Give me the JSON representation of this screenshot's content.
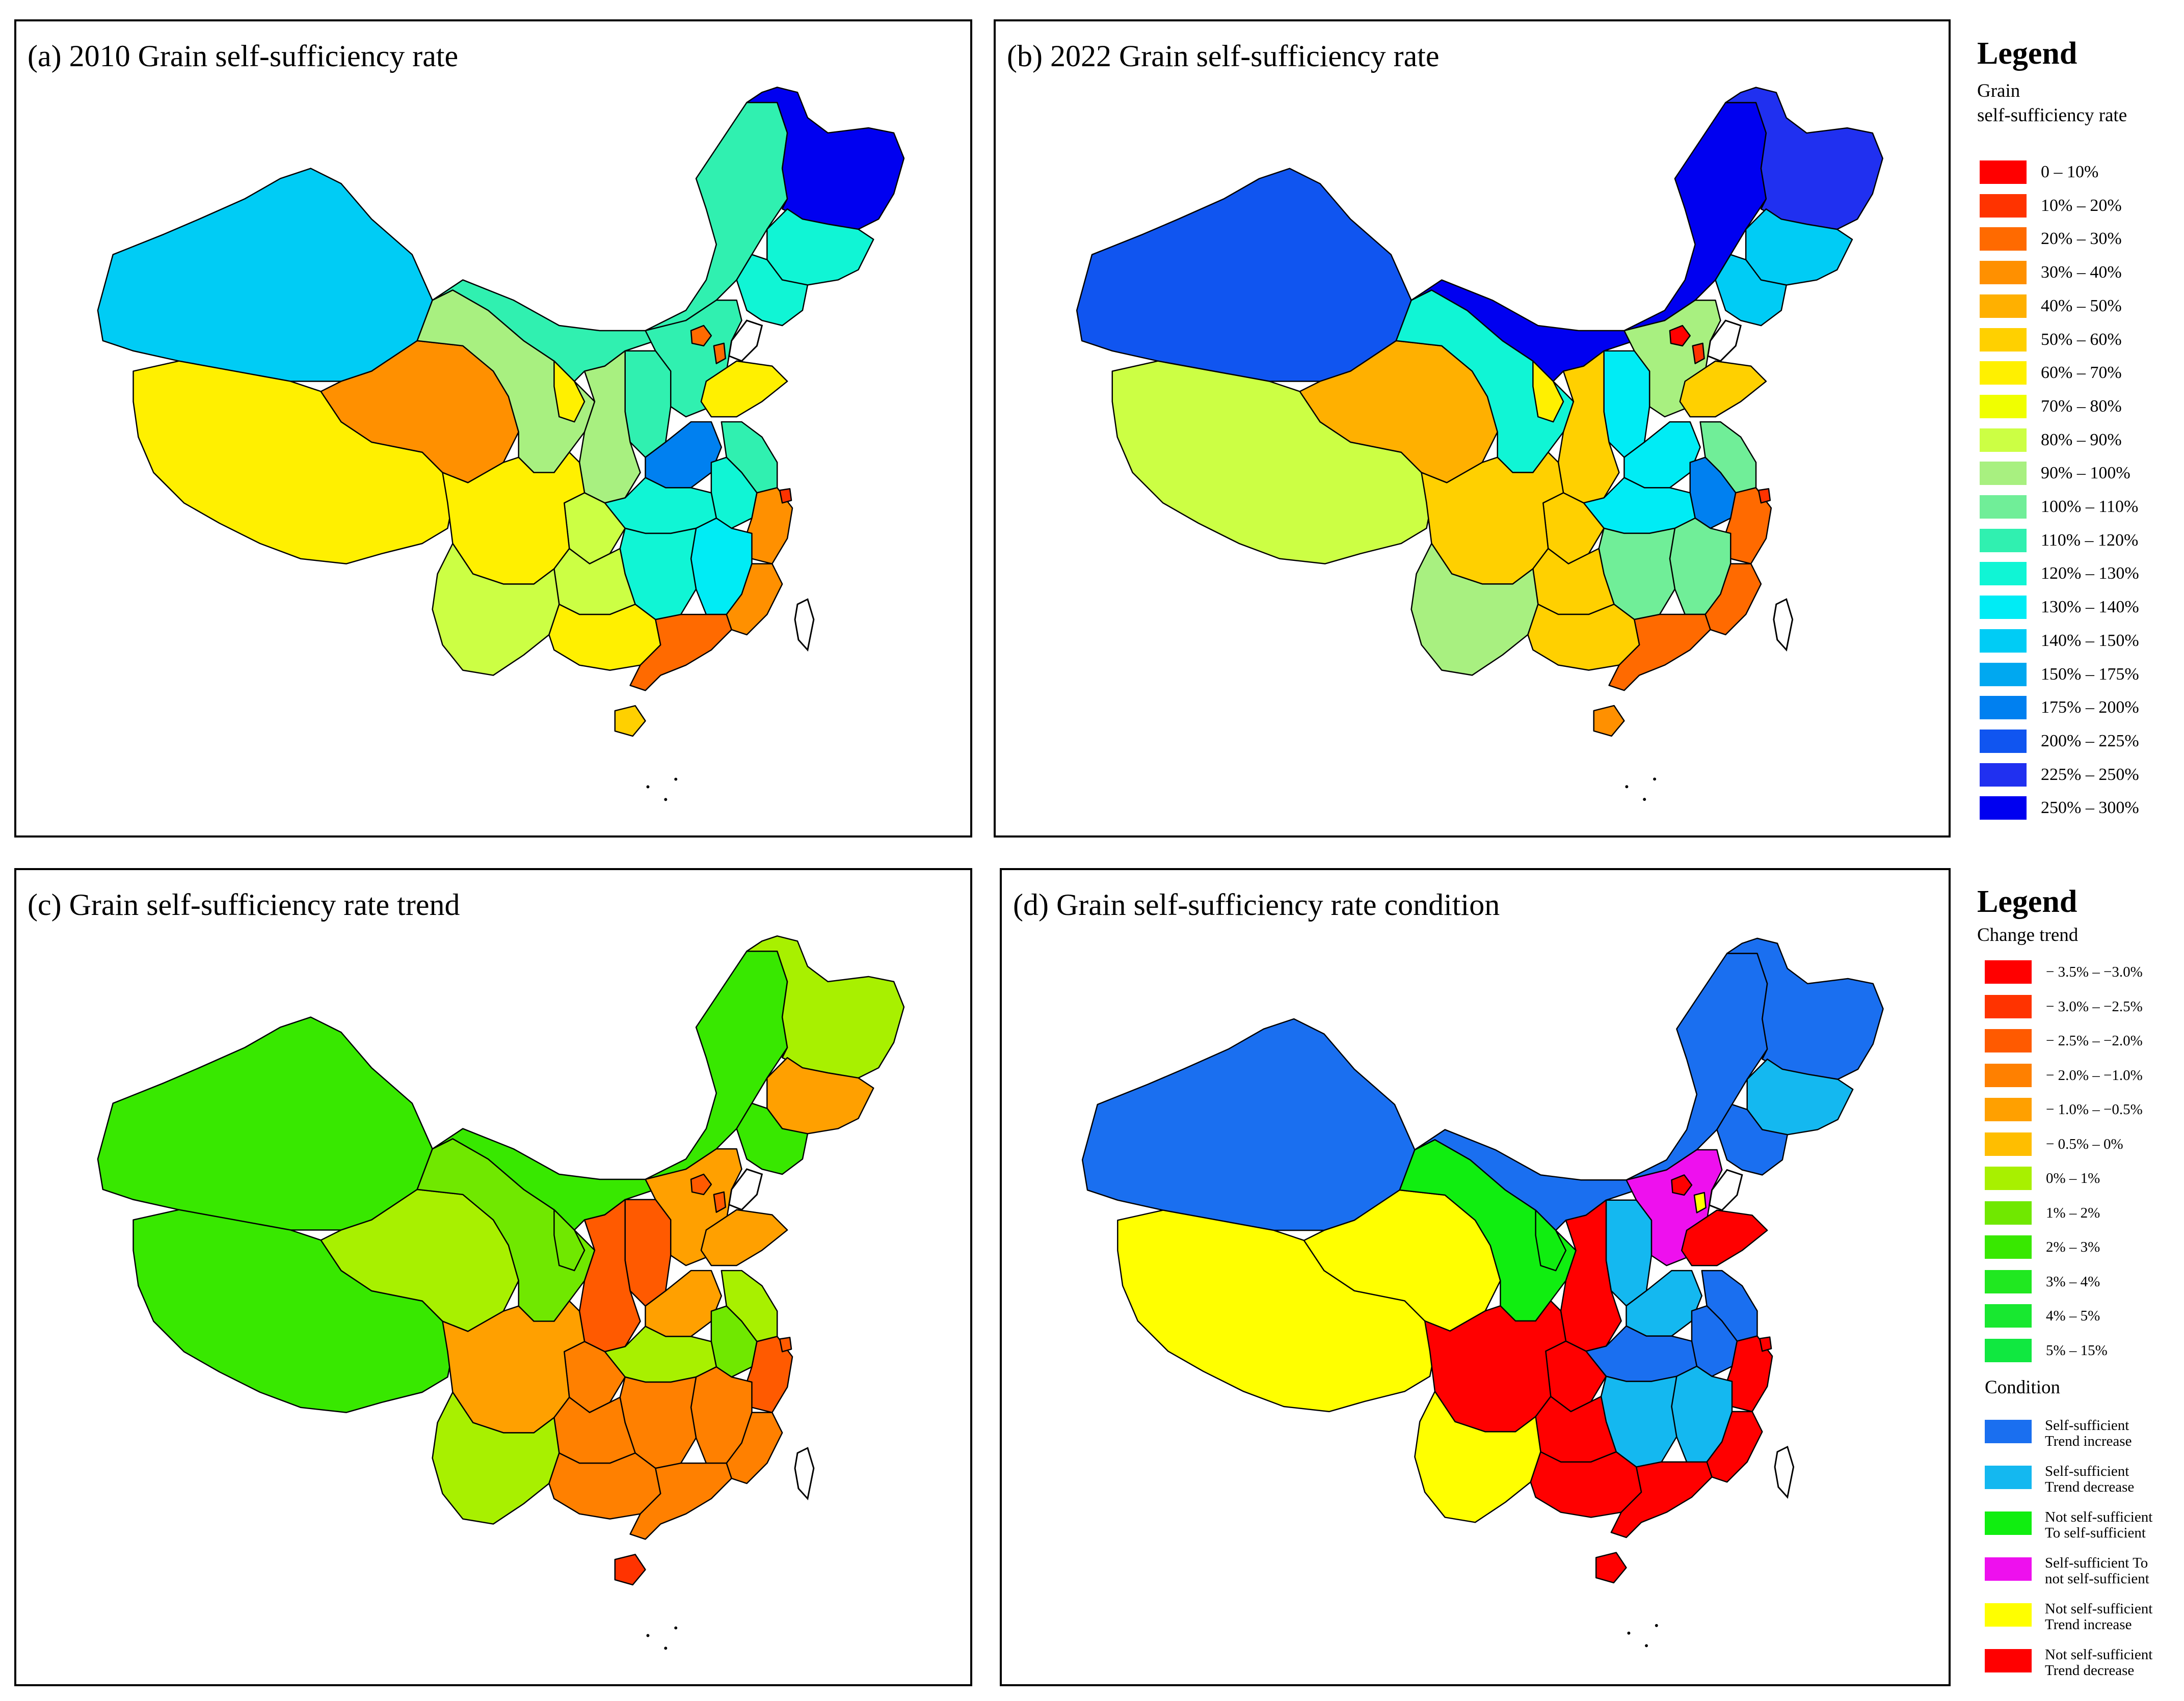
{
  "panels": {
    "a": {
      "title": "(a) 2010 Grain self-sufficiency rate"
    },
    "b": {
      "title": "(b)  2022 Grain self-sufficiency rate"
    },
    "c": {
      "title": "(c) Grain self-sufficiency rate  trend"
    },
    "d": {
      "title": "(d) Grain self-sufficiency rate condition"
    }
  },
  "legend_top": {
    "title": "Legend",
    "subtitle_line1": "Grain",
    "subtitle_line2": "self-sufficiency  rate",
    "items": [
      {
        "label": "0 – 10%",
        "color": "#ff0000"
      },
      {
        "label": "10% – 20%",
        "color": "#ff3300"
      },
      {
        "label": "20% – 30%",
        "color": "#ff6a00"
      },
      {
        "label": "30% – 40%",
        "color": "#ff9000"
      },
      {
        "label": "40% – 50%",
        "color": "#ffb000"
      },
      {
        "label": "50% – 60%",
        "color": "#ffd000"
      },
      {
        "label": "60% – 70%",
        "color": "#fff000"
      },
      {
        "label": "70% – 80%",
        "color": "#f0ff00"
      },
      {
        "label": "80% – 90%",
        "color": "#ccff44"
      },
      {
        "label": "90% – 100%",
        "color": "#a8f080"
      },
      {
        "label": "100% – 110%",
        "color": "#70ee98"
      },
      {
        "label": "110% – 120%",
        "color": "#30f0b0"
      },
      {
        "label": "120% – 130%",
        "color": "#10f5d5"
      },
      {
        "label": "130% – 140%",
        "color": "#00ecf5"
      },
      {
        "label": "140% – 150%",
        "color": "#00ccf5"
      },
      {
        "label": "150% – 175%",
        "color": "#00a8f0"
      },
      {
        "label": "175% – 200%",
        "color": "#0080f0"
      },
      {
        "label": "200% – 225%",
        "color": "#1055f0"
      },
      {
        "label": "225% – 250%",
        "color": "#2030f0"
      },
      {
        "label": "250% – 300%",
        "color": "#0000f0"
      }
    ]
  },
  "legend_bottom": {
    "title": "Legend",
    "trend_heading": "Change trend",
    "trend_items": [
      {
        "label": "− 3.5% – −3.0%",
        "color": "#ff0000"
      },
      {
        "label": "− 3.0% – −2.5%",
        "color": "#ff3300"
      },
      {
        "label": "− 2.5% – −2.0%",
        "color": "#ff5a00"
      },
      {
        "label": "− 2.0% – −1.0%",
        "color": "#ff8000"
      },
      {
        "label": "− 1.0% – −0.5%",
        "color": "#ffa000"
      },
      {
        "label": "− 0.5% – 0%",
        "color": "#ffbe00"
      },
      {
        "label": "0% – 1%",
        "color": "#a8f000"
      },
      {
        "label": "1% – 2%",
        "color": "#70e800"
      },
      {
        "label": "2% – 3%",
        "color": "#38e800"
      },
      {
        "label": "3% – 4%",
        "color": "#20e820"
      },
      {
        "label": "4% – 5%",
        "color": "#18e830"
      },
      {
        "label": "5% – 15%",
        "color": "#10e840"
      }
    ],
    "condition_heading": "Condition",
    "condition_items": [
      {
        "line1": "Self-sufficient",
        "line2": "Trend increase",
        "color": "#1a6ff0"
      },
      {
        "line1": "Self-sufficient",
        "line2": "Trend decrease",
        "color": "#14b8f0"
      },
      {
        "line1": "Not self-sufficient",
        "line2": "To self-sufficient",
        "color": "#10ee10"
      },
      {
        "line1": "Self-sufficient To",
        "line2": "not self-sufficient",
        "color": "#ee10ee"
      },
      {
        "line1": "Not self-sufficient",
        "line2": "Trend increase",
        "color": "#ffff00"
      },
      {
        "line1": "Not self-sufficient",
        "line2": "Trend decrease",
        "color": "#ff0000"
      }
    ]
  },
  "map_colors": {
    "a": {
      "heilongjiang": "#0000f0",
      "jilin": "#10f5d5",
      "liaoning": "#10f5d5",
      "innermongolia": "#30f0b0",
      "xinjiang": "#00ccf5",
      "gansu": "#a8f080",
      "qinghai": "#ff9000",
      "tibet": "#fff000",
      "sichuan": "#fff000",
      "yunnan": "#ccff44",
      "guizhou": "#ccff44",
      "chongqing": "#ccff44",
      "guangxi": "#fff000",
      "guangdong": "#ff6a00",
      "fujian": "#ff9000",
      "zhejiang": "#ff9000",
      "jiangxi": "#00ecf5",
      "hunan": "#10f5d5",
      "hubei": "#10f5d5",
      "henan": "#0080f0",
      "anhui": "#10f5d5",
      "jiangsu": "#30f0b0",
      "shandong": "#fff000",
      "hebei": "#30f0b0",
      "shanxi": "#30f0b0",
      "shaanxi": "#a8f080",
      "ningxia": "#fff000",
      "beijing": "#ff6a00",
      "tianjin": "#ff6a00",
      "shanghai": "#ff3300",
      "hainan": "#ffd000"
    },
    "b": {
      "heilongjiang": "#2030f0",
      "jilin": "#00ccf5",
      "liaoning": "#00ccf5",
      "innermongolia": "#0000f0",
      "xinjiang": "#1055f0",
      "gansu": "#10f5d5",
      "qinghai": "#ffb000",
      "tibet": "#ccff44",
      "sichuan": "#ffd000",
      "yunnan": "#a8f080",
      "guizhou": "#ffd000",
      "chongqing": "#ffd000",
      "guangxi": "#ffd000",
      "guangdong": "#ff6a00",
      "fujian": "#ff6a00",
      "zhejiang": "#ff6a00",
      "jiangxi": "#70ee98",
      "hunan": "#70ee98",
      "hubei": "#00ecf5",
      "henan": "#00ecf5",
      "anhui": "#0080f0",
      "jiangsu": "#70ee98",
      "shandong": "#ffd000",
      "hebei": "#a8f080",
      "shanxi": "#00ecf5",
      "shaanxi": "#ffd000",
      "ningxia": "#fff000",
      "beijing": "#ff0000",
      "tianjin": "#ff3300",
      "shanghai": "#ff3300",
      "hainan": "#ff9000"
    },
    "c": {
      "heilongjiang": "#a8f000",
      "jilin": "#ffa000",
      "liaoning": "#38e800",
      "innermongolia": "#38e800",
      "xinjiang": "#38e800",
      "gansu": "#70e800",
      "qinghai": "#a8f000",
      "tibet": "#38e800",
      "sichuan": "#ffa000",
      "yunnan": "#a8f000",
      "guizhou": "#ff8000",
      "chongqing": "#ff8000",
      "guangxi": "#ff8000",
      "guangdong": "#ff8000",
      "fujian": "#ff8000",
      "zhejiang": "#ff5a00",
      "jiangxi": "#ff8000",
      "hunan": "#ff8000",
      "hubei": "#a8f000",
      "henan": "#ffa000",
      "anhui": "#70e800",
      "jiangsu": "#a8f000",
      "shandong": "#ffa000",
      "hebei": "#ffa000",
      "shanxi": "#ff5a00",
      "shaanxi": "#ff5a00",
      "ningxia": "#70e800",
      "beijing": "#ff5a00",
      "tianjin": "#ff5a00",
      "shanghai": "#ff5a00",
      "hainan": "#ff3300"
    },
    "d": {
      "heilongjiang": "#1a6ff0",
      "jilin": "#14b8f0",
      "liaoning": "#1a6ff0",
      "innermongolia": "#1a6ff0",
      "xinjiang": "#1a6ff0",
      "gansu": "#10ee10",
      "qinghai": "#ffff00",
      "tibet": "#ffff00",
      "sichuan": "#ff0000",
      "yunnan": "#ffff00",
      "guizhou": "#ff0000",
      "chongqing": "#ff0000",
      "guangxi": "#ff0000",
      "guangdong": "#ff0000",
      "fujian": "#ff0000",
      "zhejiang": "#ff0000",
      "jiangxi": "#14b8f0",
      "hunan": "#14b8f0",
      "hubei": "#1a6ff0",
      "henan": "#14b8f0",
      "anhui": "#1a6ff0",
      "jiangsu": "#1a6ff0",
      "shandong": "#ff0000",
      "hebei": "#ee10ee",
      "shanxi": "#14b8f0",
      "shaanxi": "#ff0000",
      "ningxia": "#10ee10",
      "beijing": "#ff0000",
      "tianjin": "#ffff00",
      "shanghai": "#ff0000",
      "hainan": "#ff0000"
    }
  }
}
